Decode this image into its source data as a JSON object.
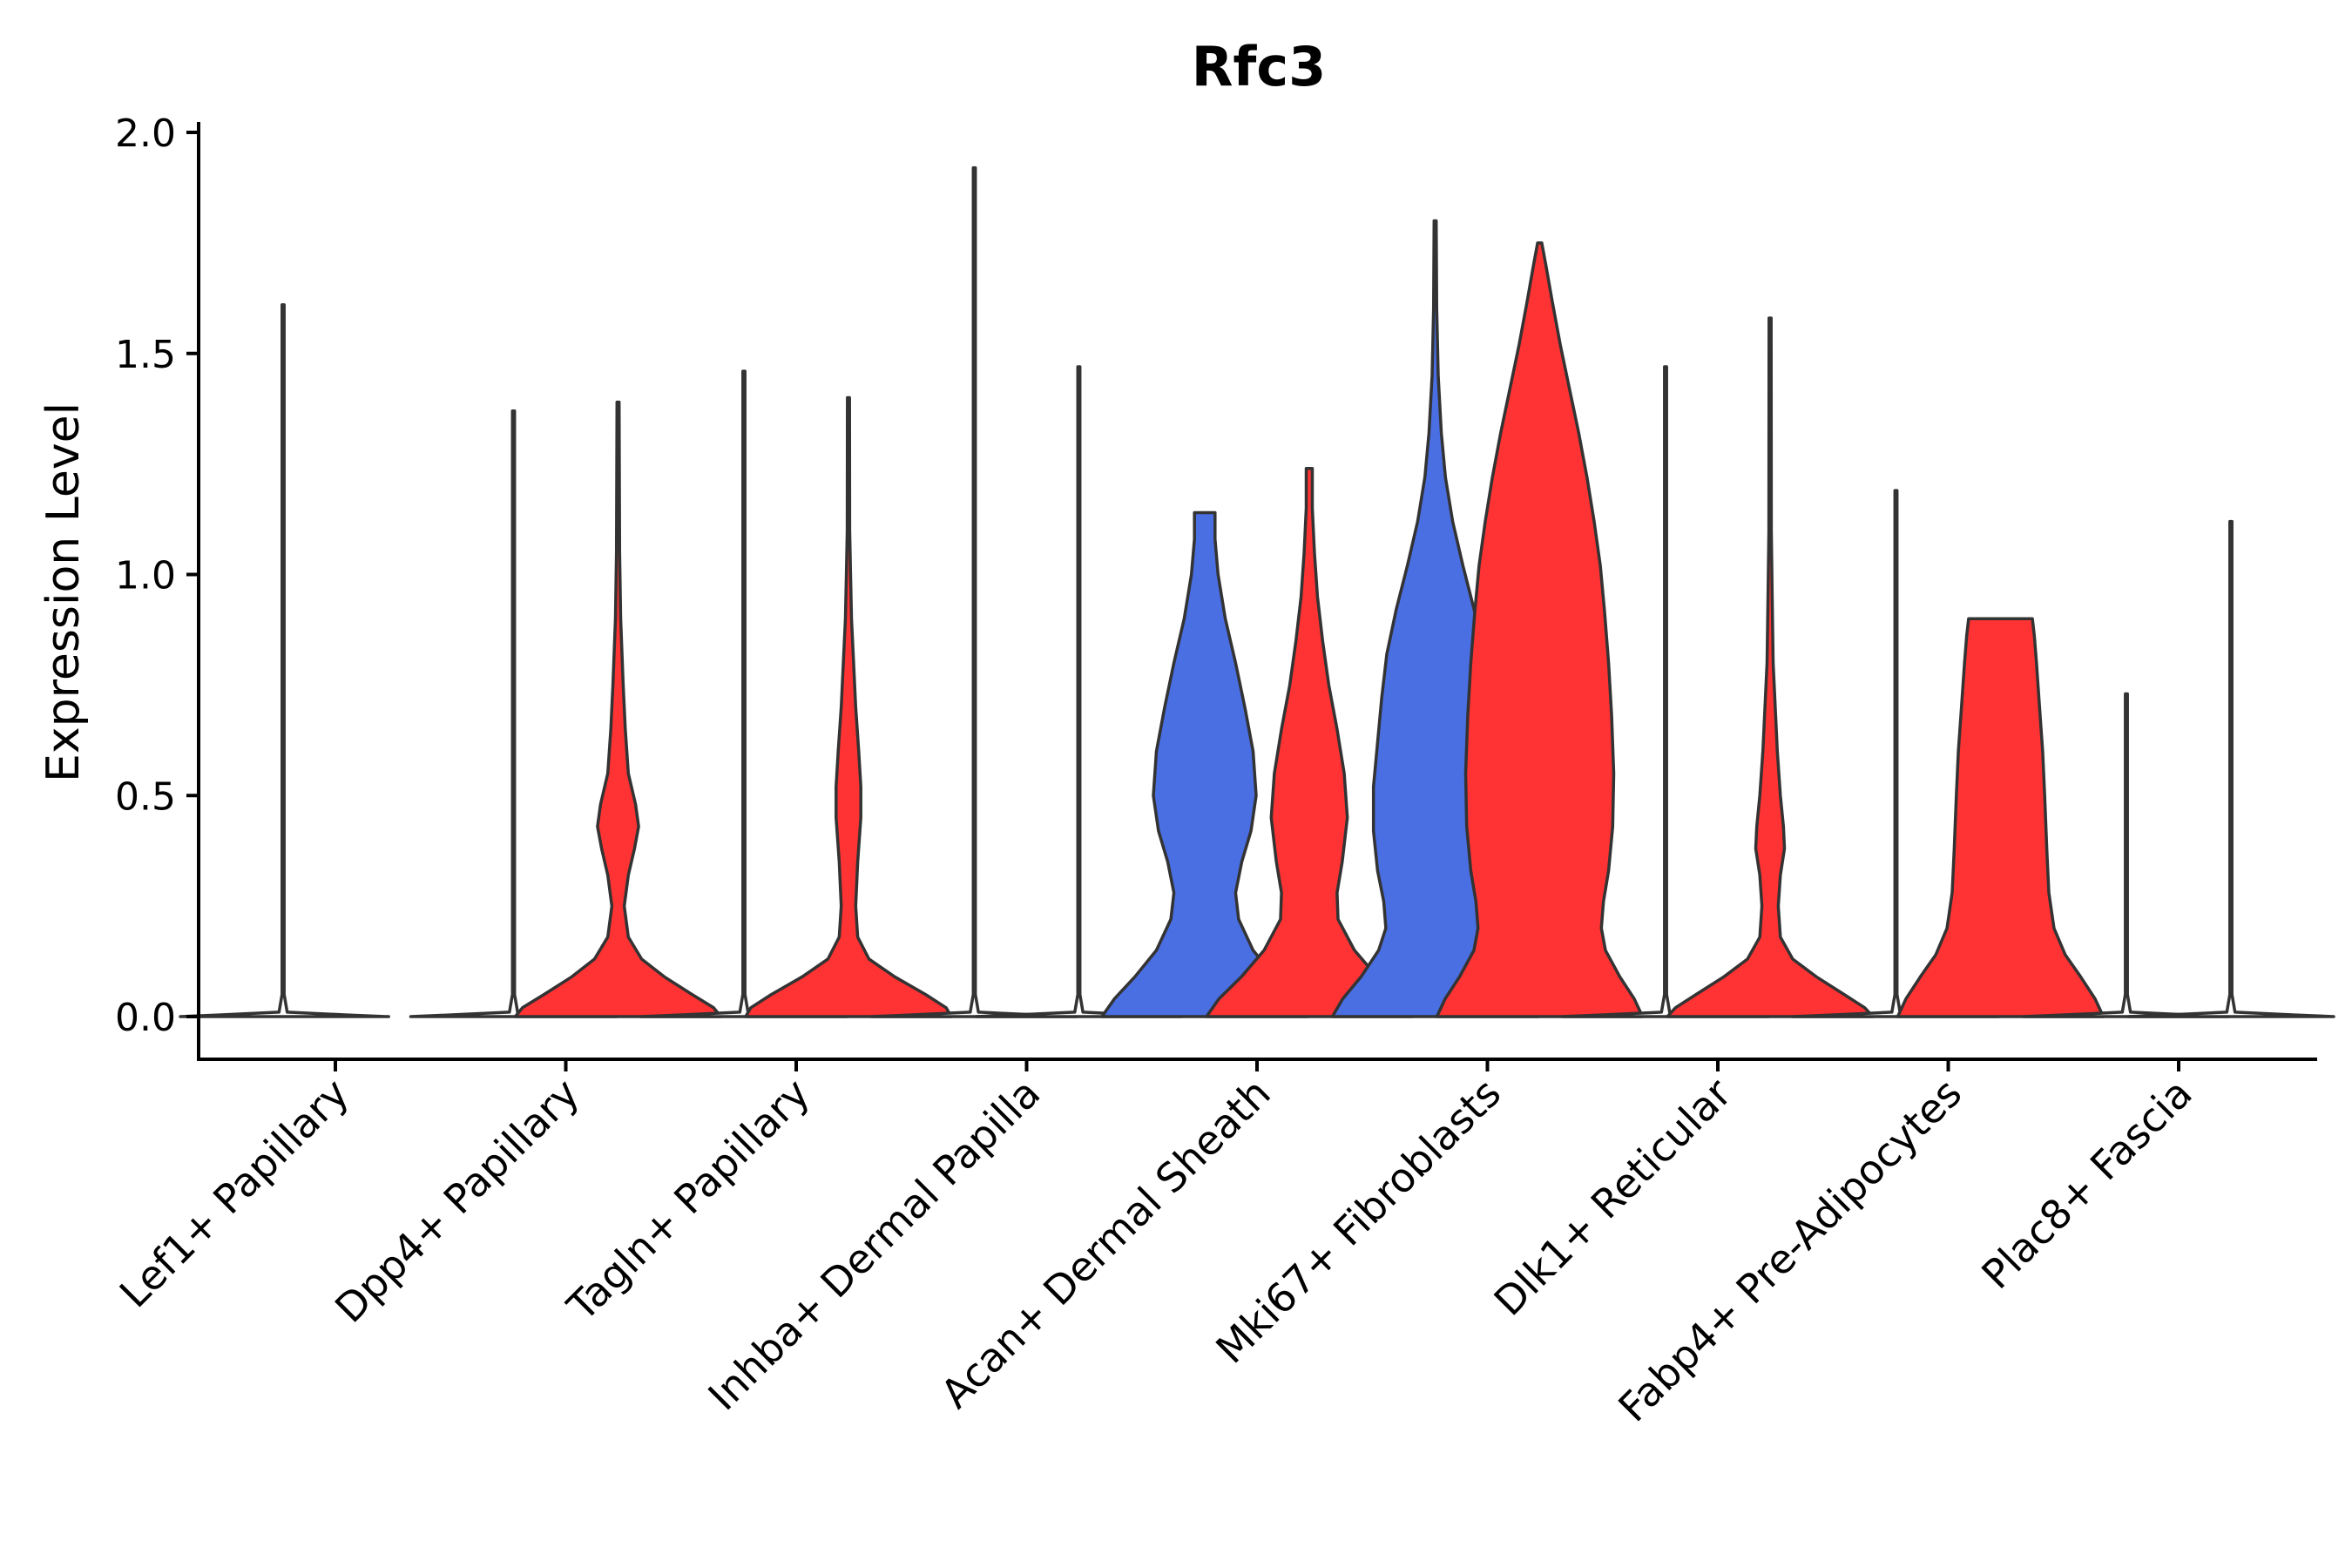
{
  "chart_data": {
    "type": "violin",
    "title": "Rfc3",
    "xlabel": "",
    "ylabel": "Expression Level",
    "ylim": [
      -0.1,
      2.0
    ],
    "yticks": [
      0.0,
      0.5,
      1.0,
      1.5,
      2.0
    ],
    "ytick_labels": [
      "0.0",
      "0.5",
      "1.0",
      "1.5",
      "2.0"
    ],
    "grid": false,
    "legend": "none",
    "group_colors": {
      "blue": "#4A6FE3",
      "red": "#FF3333",
      "flat": "#ffffff"
    },
    "categories": [
      "Lef1+ Papillary",
      "Dpp4+ Papillary",
      "Tagln+ Papillary",
      "Inhba+ Dermal Papilla",
      "Acan+ Dermal Sheath",
      "Mki67+ Fibroblasts",
      "Dlk1+ Reticular",
      "Fabp4+ Pre-Adipocytes",
      "Plac8+ Fascia"
    ],
    "violins": [
      {
        "category": "Lef1+ Papillary",
        "side": "left",
        "color": "flat",
        "max": 1.61,
        "profile": [
          [
            0,
            1.0
          ],
          [
            0.004,
            0.6
          ],
          [
            0.01,
            0.04
          ],
          [
            0.05,
            0.01
          ],
          [
            1.61,
            0.01
          ]
        ]
      },
      {
        "category": "Lef1+ Papillary",
        "side": "right",
        "color": "flat",
        "max": 0.0,
        "profile": [
          [
            0,
            0.01
          ]
        ]
      },
      {
        "category": "Dpp4+ Papillary",
        "side": "left",
        "color": "flat",
        "max": 1.37,
        "profile": [
          [
            0,
            1.0
          ],
          [
            0.004,
            0.6
          ],
          [
            0.01,
            0.04
          ],
          [
            0.05,
            0.01
          ],
          [
            1.37,
            0.01
          ]
        ]
      },
      {
        "category": "Dpp4+ Papillary",
        "side": "right",
        "color": "red",
        "max": 1.39,
        "profile": [
          [
            0,
            1.0
          ],
          [
            0.02,
            0.93
          ],
          [
            0.05,
            0.72
          ],
          [
            0.09,
            0.45
          ],
          [
            0.13,
            0.23
          ],
          [
            0.18,
            0.1
          ],
          [
            0.25,
            0.06
          ],
          [
            0.32,
            0.1
          ],
          [
            0.38,
            0.16
          ],
          [
            0.43,
            0.2
          ],
          [
            0.48,
            0.17
          ],
          [
            0.55,
            0.1
          ],
          [
            0.65,
            0.07
          ],
          [
            0.75,
            0.05
          ],
          [
            0.9,
            0.025
          ],
          [
            1.05,
            0.015
          ],
          [
            1.39,
            0.01
          ]
        ]
      },
      {
        "category": "Tagln+ Papillary",
        "side": "left",
        "color": "flat",
        "max": 1.46,
        "profile": [
          [
            0,
            1.0
          ],
          [
            0.004,
            0.6
          ],
          [
            0.01,
            0.04
          ],
          [
            0.05,
            0.01
          ],
          [
            1.46,
            0.01
          ]
        ]
      },
      {
        "category": "Tagln+ Papillary",
        "side": "right",
        "color": "red",
        "max": 1.4,
        "profile": [
          [
            0,
            1.0
          ],
          [
            0.02,
            0.95
          ],
          [
            0.05,
            0.75
          ],
          [
            0.09,
            0.45
          ],
          [
            0.13,
            0.2
          ],
          [
            0.18,
            0.09
          ],
          [
            0.25,
            0.07
          ],
          [
            0.35,
            0.09
          ],
          [
            0.45,
            0.12
          ],
          [
            0.52,
            0.12
          ],
          [
            0.6,
            0.1
          ],
          [
            0.7,
            0.07
          ],
          [
            0.8,
            0.05
          ],
          [
            0.9,
            0.03
          ],
          [
            1.0,
            0.02
          ],
          [
            1.1,
            0.012
          ],
          [
            1.4,
            0.01
          ]
        ]
      },
      {
        "category": "Inhba+ Dermal Papilla",
        "side": "left",
        "color": "flat",
        "max": 1.92,
        "profile": [
          [
            0,
            1.0
          ],
          [
            0.004,
            0.6
          ],
          [
            0.01,
            0.04
          ],
          [
            0.05,
            0.01
          ],
          [
            1.92,
            0.01
          ]
        ]
      },
      {
        "category": "Inhba+ Dermal Papilla",
        "side": "right",
        "color": "flat",
        "max": 1.47,
        "profile": [
          [
            0,
            1.0
          ],
          [
            0.004,
            0.6
          ],
          [
            0.01,
            0.04
          ],
          [
            0.05,
            0.01
          ],
          [
            1.47,
            0.01
          ]
        ]
      },
      {
        "category": "Acan+ Dermal Sheath",
        "side": "left",
        "color": "blue",
        "max": 1.14,
        "profile": [
          [
            0,
            1.0
          ],
          [
            0.04,
            0.88
          ],
          [
            0.09,
            0.68
          ],
          [
            0.15,
            0.47
          ],
          [
            0.22,
            0.33
          ],
          [
            0.28,
            0.3
          ],
          [
            0.35,
            0.36
          ],
          [
            0.42,
            0.45
          ],
          [
            0.5,
            0.5
          ],
          [
            0.6,
            0.47
          ],
          [
            0.7,
            0.39
          ],
          [
            0.8,
            0.3
          ],
          [
            0.9,
            0.2
          ],
          [
            1.0,
            0.13
          ],
          [
            1.08,
            0.1
          ],
          [
            1.14,
            0.1
          ]
        ]
      },
      {
        "category": "Acan+ Dermal Sheath",
        "side": "right",
        "color": "red",
        "max": 1.24,
        "profile": [
          [
            0,
            1.0
          ],
          [
            0.04,
            0.88
          ],
          [
            0.09,
            0.66
          ],
          [
            0.15,
            0.44
          ],
          [
            0.22,
            0.28
          ],
          [
            0.28,
            0.27
          ],
          [
            0.35,
            0.32
          ],
          [
            0.45,
            0.37
          ],
          [
            0.55,
            0.34
          ],
          [
            0.65,
            0.27
          ],
          [
            0.75,
            0.19
          ],
          [
            0.85,
            0.13
          ],
          [
            0.95,
            0.08
          ],
          [
            1.05,
            0.05
          ],
          [
            1.15,
            0.03
          ],
          [
            1.24,
            0.03
          ]
        ]
      },
      {
        "category": "Mki67+ Fibroblasts",
        "side": "left",
        "color": "blue",
        "max": 1.8,
        "profile": [
          [
            0,
            1.0
          ],
          [
            0.04,
            0.9
          ],
          [
            0.09,
            0.72
          ],
          [
            0.15,
            0.55
          ],
          [
            0.2,
            0.48
          ],
          [
            0.26,
            0.5
          ],
          [
            0.33,
            0.56
          ],
          [
            0.42,
            0.6
          ],
          [
            0.52,
            0.6
          ],
          [
            0.62,
            0.56
          ],
          [
            0.72,
            0.52
          ],
          [
            0.82,
            0.47
          ],
          [
            0.92,
            0.38
          ],
          [
            1.02,
            0.27
          ],
          [
            1.12,
            0.17
          ],
          [
            1.22,
            0.1
          ],
          [
            1.32,
            0.06
          ],
          [
            1.45,
            0.03
          ],
          [
            1.6,
            0.015
          ],
          [
            1.8,
            0.01
          ]
        ]
      },
      {
        "category": "Mki67+ Fibroblasts",
        "side": "right",
        "color": "red",
        "max": 1.75,
        "profile": [
          [
            0,
            1.0
          ],
          [
            0.04,
            0.92
          ],
          [
            0.09,
            0.78
          ],
          [
            0.15,
            0.64
          ],
          [
            0.2,
            0.6
          ],
          [
            0.26,
            0.62
          ],
          [
            0.33,
            0.67
          ],
          [
            0.43,
            0.71
          ],
          [
            0.55,
            0.72
          ],
          [
            0.68,
            0.7
          ],
          [
            0.8,
            0.67
          ],
          [
            0.92,
            0.63
          ],
          [
            1.02,
            0.59
          ],
          [
            1.12,
            0.53
          ],
          [
            1.22,
            0.46
          ],
          [
            1.32,
            0.38
          ],
          [
            1.42,
            0.29
          ],
          [
            1.52,
            0.2
          ],
          [
            1.62,
            0.12
          ],
          [
            1.7,
            0.06
          ],
          [
            1.75,
            0.02
          ]
        ]
      },
      {
        "category": "Dlk1+ Reticular",
        "side": "left",
        "color": "flat",
        "max": 1.47,
        "profile": [
          [
            0,
            1.0
          ],
          [
            0.004,
            0.6
          ],
          [
            0.01,
            0.04
          ],
          [
            0.05,
            0.01
          ],
          [
            1.47,
            0.01
          ]
        ]
      },
      {
        "category": "Dlk1+ Reticular",
        "side": "right",
        "color": "red",
        "max": 1.58,
        "profile": [
          [
            0,
            1.0
          ],
          [
            0.02,
            0.92
          ],
          [
            0.05,
            0.72
          ],
          [
            0.09,
            0.45
          ],
          [
            0.13,
            0.22
          ],
          [
            0.18,
            0.1
          ],
          [
            0.25,
            0.08
          ],
          [
            0.32,
            0.1
          ],
          [
            0.38,
            0.14
          ],
          [
            0.43,
            0.13
          ],
          [
            0.5,
            0.1
          ],
          [
            0.6,
            0.07
          ],
          [
            0.7,
            0.05
          ],
          [
            0.8,
            0.03
          ],
          [
            0.95,
            0.02
          ],
          [
            1.1,
            0.012
          ],
          [
            1.58,
            0.01
          ]
        ]
      },
      {
        "category": "Fabp4+ Pre-Adipocytes",
        "side": "left",
        "color": "flat",
        "max": 1.19,
        "profile": [
          [
            0,
            1.0
          ],
          [
            0.004,
            0.6
          ],
          [
            0.01,
            0.04
          ],
          [
            0.05,
            0.01
          ],
          [
            1.19,
            0.01
          ]
        ]
      },
      {
        "category": "Fabp4+ Pre-Adipocytes",
        "side": "right",
        "color": "red",
        "max": 0.9,
        "profile": [
          [
            0,
            1.0
          ],
          [
            0.04,
            0.92
          ],
          [
            0.09,
            0.78
          ],
          [
            0.14,
            0.63
          ],
          [
            0.2,
            0.52
          ],
          [
            0.28,
            0.47
          ],
          [
            0.38,
            0.45
          ],
          [
            0.5,
            0.43
          ],
          [
            0.6,
            0.41
          ],
          [
            0.7,
            0.38
          ],
          [
            0.8,
            0.35
          ],
          [
            0.86,
            0.33
          ],
          [
            0.9,
            0.31
          ]
        ]
      },
      {
        "category": "Plac8+ Fascia",
        "side": "left",
        "color": "flat",
        "max": 0.73,
        "profile": [
          [
            0,
            1.0
          ],
          [
            0.004,
            0.6
          ],
          [
            0.01,
            0.04
          ],
          [
            0.05,
            0.01
          ],
          [
            0.73,
            0.01
          ]
        ]
      },
      {
        "category": "Plac8+ Fascia",
        "side": "right",
        "color": "flat",
        "max": 1.12,
        "profile": [
          [
            0,
            1.0
          ],
          [
            0.004,
            0.6
          ],
          [
            0.01,
            0.04
          ],
          [
            0.05,
            0.01
          ],
          [
            1.12,
            0.01
          ]
        ]
      }
    ]
  }
}
